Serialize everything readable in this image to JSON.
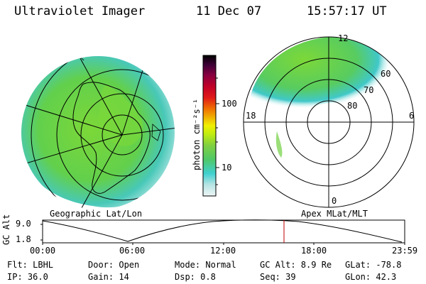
{
  "header": {
    "instrument": "Ultraviolet Imager",
    "date": "11 Dec 07",
    "time": "15:57:17 UT"
  },
  "left_map": {
    "caption": "Geographic Lat/Lon"
  },
  "right_map": {
    "caption": "Apex MLat/MLT",
    "mlt_labels": {
      "top": "12",
      "left": "18",
      "right": "6",
      "bottom": "0"
    },
    "lat_labels": [
      "60",
      "70",
      "80"
    ]
  },
  "colorbar": {
    "unit_label": "photon cm⁻²s⁻¹",
    "ticks": [
      "100",
      "10"
    ],
    "colors": [
      "#e0f0f0",
      "#b0e0e0",
      "#40d0d0",
      "#60d050",
      "#80d040",
      "#a0e020",
      "#d0f000",
      "#f0f000",
      "#f0c000",
      "#f09000",
      "#f05000",
      "#e01010",
      "#c00020",
      "#900030",
      "#600040",
      "#300030",
      "#000000"
    ]
  },
  "orbit_plot": {
    "y_axis_label": "GC Alt",
    "y_ticks": [
      "9.0",
      "1.8"
    ],
    "x_ticks": [
      "00:00",
      "06:00",
      "12:00",
      "18:00",
      "23:59"
    ],
    "marker_color": "#c00000"
  },
  "footer": {
    "row1": {
      "filter": "Flt: LBHL",
      "door": "Door: Open",
      "mode": "Mode: Normal",
      "gc_alt": "GC Alt: 8.9 Re",
      "glat": "GLat: -78.8"
    },
    "row2": {
      "ip": "IP: 36.0",
      "gain": "Gain: 14",
      "dsp": "Dsp:    0.8",
      "seq": "Seq: 39",
      "glon": "GLon:  42.3"
    }
  },
  "colors": {
    "aurora_green": "#70d040",
    "aurora_cyan": "#40c8c8",
    "grid": "#000000"
  }
}
